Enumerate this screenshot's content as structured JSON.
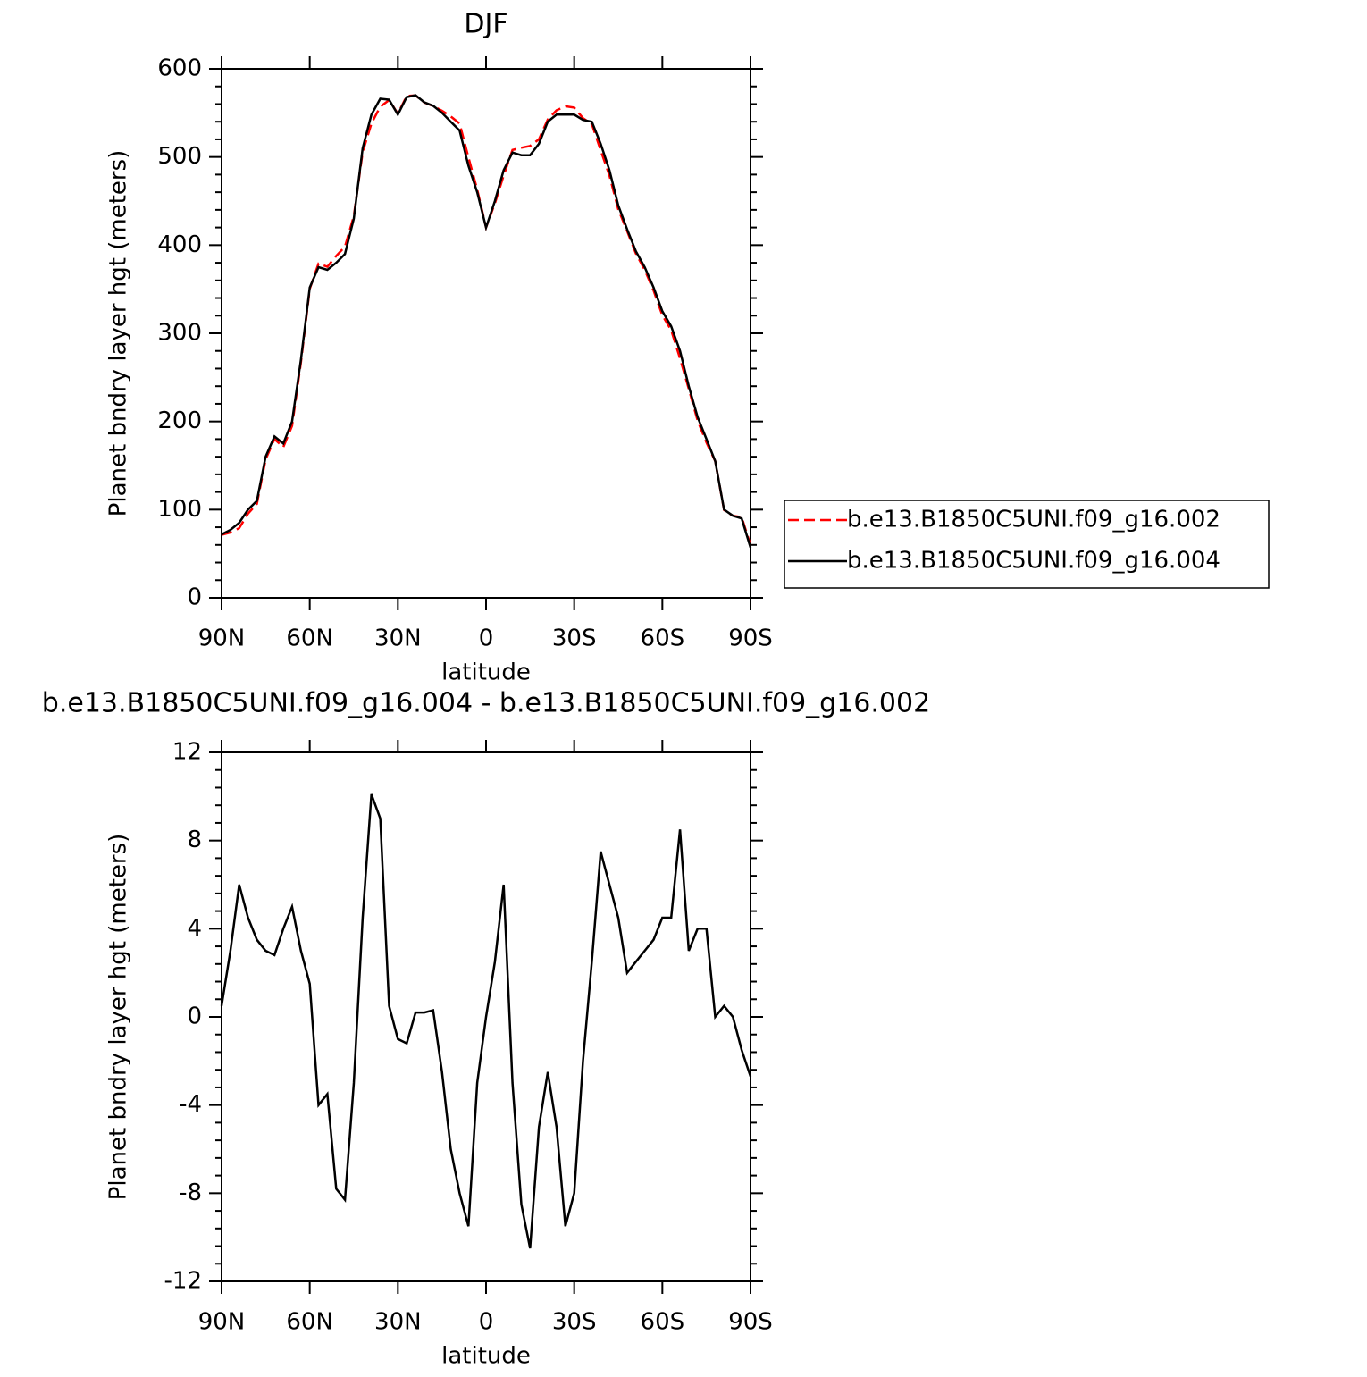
{
  "chart_data": [
    {
      "type": "line",
      "title": "DJF",
      "x_label": "latitude",
      "y_label": "Planet bndry layer hgt (meters)",
      "xlim": [
        90,
        -90
      ],
      "xticks": [
        {
          "value": 90,
          "label": "90N"
        },
        {
          "value": 60,
          "label": "60N"
        },
        {
          "value": 30,
          "label": "30N"
        },
        0,
        {
          "value": -30,
          "label": "30S"
        },
        {
          "value": -60,
          "label": "60S"
        },
        {
          "value": -90,
          "label": "90S"
        }
      ],
      "ylim": [
        0,
        600
      ],
      "yticks": [
        0,
        100,
        200,
        300,
        400,
        500,
        600
      ],
      "x": [
        90,
        87,
        84,
        81,
        78,
        75,
        72,
        69,
        66,
        63,
        60,
        57,
        54,
        51,
        48,
        45,
        42,
        39,
        36,
        33,
        30,
        27,
        24,
        21,
        18,
        15,
        12,
        9,
        6,
        3,
        0,
        -3,
        -6,
        -9,
        -12,
        -15,
        -18,
        -21,
        -24,
        -27,
        -30,
        -33,
        -36,
        -39,
        -42,
        -45,
        -48,
        -51,
        -54,
        -57,
        -60,
        -63,
        -66,
        -69,
        -72,
        -75,
        -78,
        -81,
        -84,
        -87,
        -90
      ],
      "series": [
        {
          "name": "b.e13.B1850C5UNI.f09_g16.002",
          "color": "#ff0000",
          "dash": true,
          "values": [
            71.5,
            74,
            79,
            95.5,
            106.5,
            157,
            180,
            171,
            195,
            267,
            350.5,
            379,
            375.5,
            387.8,
            398.3,
            433,
            505.5,
            537.9,
            557,
            564.5,
            549,
            569.2,
            569.8,
            561.8,
            557.7,
            552.5,
            546,
            538,
            499.5,
            463,
            420,
            447.5,
            479,
            508,
            510.5,
            512.5,
            520,
            542.5,
            553,
            557.5,
            556,
            544,
            537.5,
            507.5,
            479,
            440.5,
            416,
            390.5,
            372,
            348.5,
            320.5,
            303.5,
            271.5,
            237,
            201,
            176,
            155,
            99.5,
            93,
            91.5,
            59.7
          ]
        },
        {
          "name": "b.e13.B1850C5UNI.f09_g16.004",
          "color": "#000000",
          "dash": false,
          "values": [
            72,
            77,
            85,
            100,
            110,
            160,
            183,
            175,
            200,
            270,
            352,
            375,
            372,
            380,
            390,
            430,
            510,
            548,
            566,
            565,
            548,
            568,
            570,
            562,
            558,
            550,
            540,
            530,
            490,
            460,
            420,
            450,
            485,
            505,
            502,
            502,
            515,
            540,
            548,
            548,
            548,
            542,
            540,
            515,
            485,
            445,
            418,
            393,
            375,
            352,
            325,
            308,
            280,
            240,
            205,
            180,
            155,
            100,
            93,
            90,
            57
          ]
        }
      ]
    },
    {
      "type": "line",
      "title": "b.e13.B1850C5UNI.f09_g16.004 - b.e13.B1850C5UNI.f09_g16.002",
      "x_label": "latitude",
      "y_label": "Planet bndry layer hgt (meters)",
      "xlim": [
        90,
        -90
      ],
      "xticks": [
        {
          "value": 90,
          "label": "90N"
        },
        {
          "value": 60,
          "label": "60N"
        },
        {
          "value": 30,
          "label": "30N"
        },
        0,
        {
          "value": -30,
          "label": "30S"
        },
        {
          "value": -60,
          "label": "60S"
        },
        {
          "value": -90,
          "label": "90S"
        }
      ],
      "ylim": [
        -12,
        12
      ],
      "yticks": [
        -12,
        -8,
        -4,
        0,
        4,
        8,
        12
      ],
      "x": [
        90,
        87,
        84,
        81,
        78,
        75,
        72,
        69,
        66,
        63,
        60,
        57,
        54,
        51,
        48,
        45,
        42,
        39,
        36,
        33,
        30,
        27,
        24,
        21,
        18,
        15,
        12,
        9,
        6,
        3,
        0,
        -3,
        -6,
        -9,
        -12,
        -15,
        -18,
        -21,
        -24,
        -27,
        -30,
        -33,
        -36,
        -39,
        -42,
        -45,
        -48,
        -51,
        -54,
        -57,
        -60,
        -63,
        -66,
        -69,
        -72,
        -75,
        -78,
        -81,
        -84,
        -87,
        -90
      ],
      "color": "#000000",
      "values": [
        0.5,
        3,
        6,
        4.5,
        3.5,
        3,
        2.8,
        4,
        5,
        3,
        1.5,
        -4,
        -3.5,
        -7.8,
        -8.3,
        -3,
        4.5,
        10.1,
        9,
        0.5,
        -1,
        -1.2,
        0.2,
        0.2,
        0.3,
        -2.5,
        -6,
        -8,
        -9.5,
        -3,
        0,
        2.5,
        6,
        -3,
        -8.5,
        -10.5,
        -5,
        -2.5,
        -5,
        -9.5,
        -8,
        -2,
        2.5,
        7.5,
        6,
        4.5,
        2,
        2.5,
        3,
        3.5,
        4.5,
        4.5,
        8.5,
        3,
        4,
        4,
        0,
        0.5,
        0,
        -1.5,
        -2.7
      ]
    }
  ]
}
